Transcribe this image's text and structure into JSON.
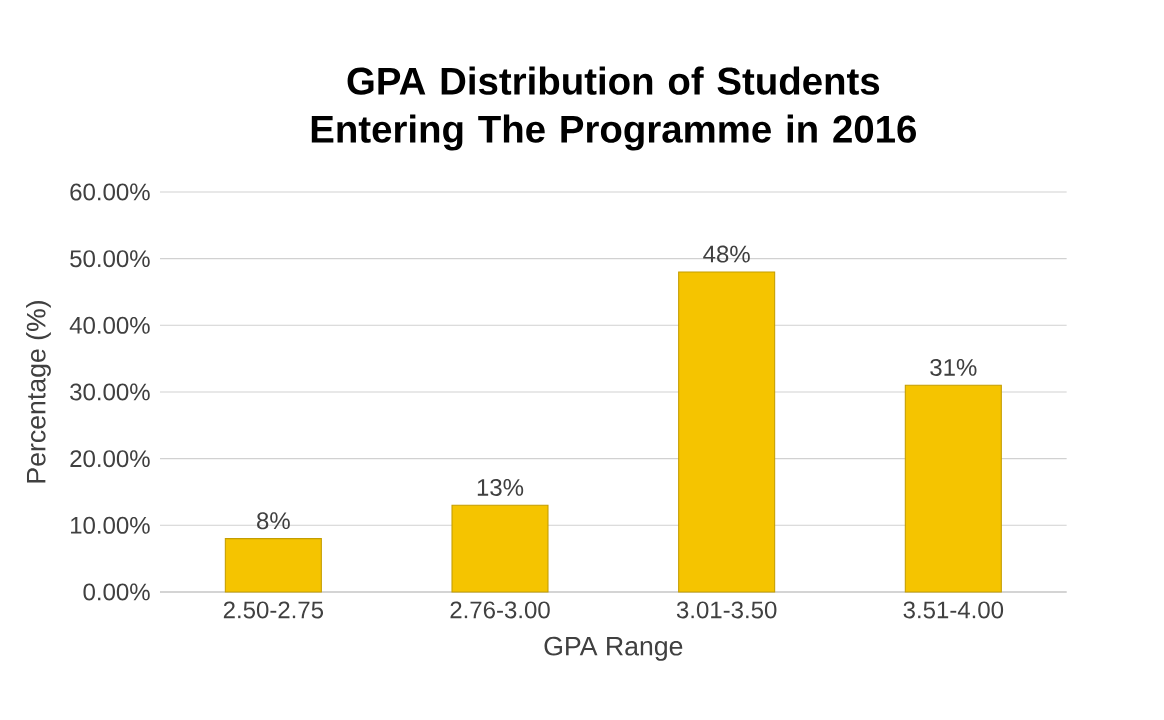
{
  "chart_data": {
    "type": "bar",
    "title": "GPA Distribution of Students Entering The Programme in 2016",
    "xlabel": "GPA Range",
    "ylabel": "Percentage (%)",
    "categories": [
      "2.50-2.75",
      "2.76-3.00",
      "3.01-3.50",
      "3.51-4.00"
    ],
    "values": [
      8,
      13,
      48,
      31
    ],
    "value_labels": [
      "8%",
      "13%",
      "48%",
      "31%"
    ],
    "color": "#f5c400",
    "ylim": [
      0,
      60
    ],
    "yticks": [
      {
        "value": 0,
        "label": "0.00%"
      },
      {
        "value": 10,
        "label": "10.00%"
      },
      {
        "value": 20,
        "label": "20.00%"
      },
      {
        "value": 30,
        "label": "30.00%"
      },
      {
        "value": 40,
        "label": "40.00%"
      },
      {
        "value": 50,
        "label": "50.00%"
      },
      {
        "value": 60,
        "label": "60.00%"
      }
    ],
    "grid": "y"
  }
}
